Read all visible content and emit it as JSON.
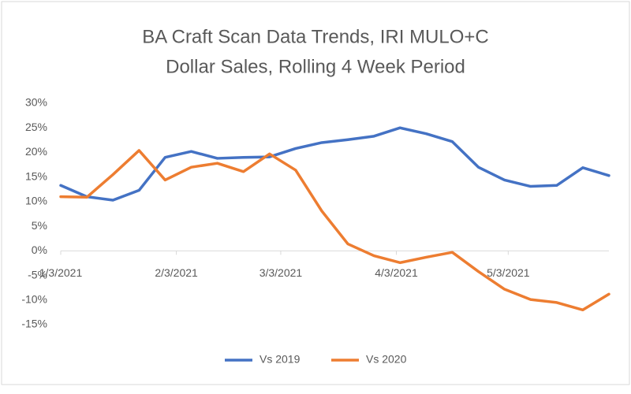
{
  "chart_data": {
    "type": "line",
    "title": [
      "BA Craft Scan Data Trends, IRI MULO+C",
      "Dollar Sales, Rolling 4 Week Period"
    ],
    "x": [
      "1/3/2021",
      "1/10/2021",
      "1/17/2021",
      "1/24/2021",
      "1/31/2021",
      "2/7/2021",
      "2/14/2021",
      "2/21/2021",
      "2/28/2021",
      "3/7/2021",
      "3/14/2021",
      "3/21/2021",
      "3/28/2021",
      "4/4/2021",
      "4/11/2021",
      "4/18/2021",
      "4/25/2021",
      "5/2/2021",
      "5/9/2021",
      "5/16/2021",
      "5/23/2021",
      "5/30/2021"
    ],
    "series": [
      {
        "name": "Vs 2019",
        "color": "#4472c4",
        "values": [
          13.3,
          11,
          10.3,
          12.3,
          19,
          20.2,
          18.8,
          19,
          19.1,
          20.8,
          22,
          22.6,
          23.3,
          25,
          23.8,
          22.2,
          17,
          14.4,
          13.1,
          13.3,
          16.9,
          15.3
        ]
      },
      {
        "name": "Vs 2020",
        "color": "#ed7d31",
        "values": [
          11,
          10.9,
          15.5,
          20.4,
          14.4,
          17,
          17.8,
          16.1,
          19.7,
          16.4,
          8.1,
          1.4,
          -1,
          -2.4,
          -1.3,
          -0.3,
          -4.2,
          -7.8,
          -9.9,
          -10.5,
          -12,
          -8.8
        ]
      }
    ],
    "xlim": [
      "1/3/2021",
      "5/30/2021"
    ],
    "xticks": [
      "1/3/2021",
      "2/3/2021",
      "3/3/2021",
      "4/3/2021",
      "5/3/2021"
    ],
    "ylim": [
      -15,
      30
    ],
    "yticks": [
      {
        "value": -15,
        "label": "-15%"
      },
      {
        "value": -10,
        "label": "-10%"
      },
      {
        "value": -5,
        "label": "-5%"
      },
      {
        "value": 0,
        "label": "0%"
      },
      {
        "value": 5,
        "label": "5%"
      },
      {
        "value": 10,
        "label": "10%"
      },
      {
        "value": 15,
        "label": "15%"
      },
      {
        "value": 20,
        "label": "20%"
      },
      {
        "value": 25,
        "label": "25%"
      },
      {
        "value": 30,
        "label": "30%"
      }
    ],
    "grid": false,
    "legend": "bottom"
  }
}
